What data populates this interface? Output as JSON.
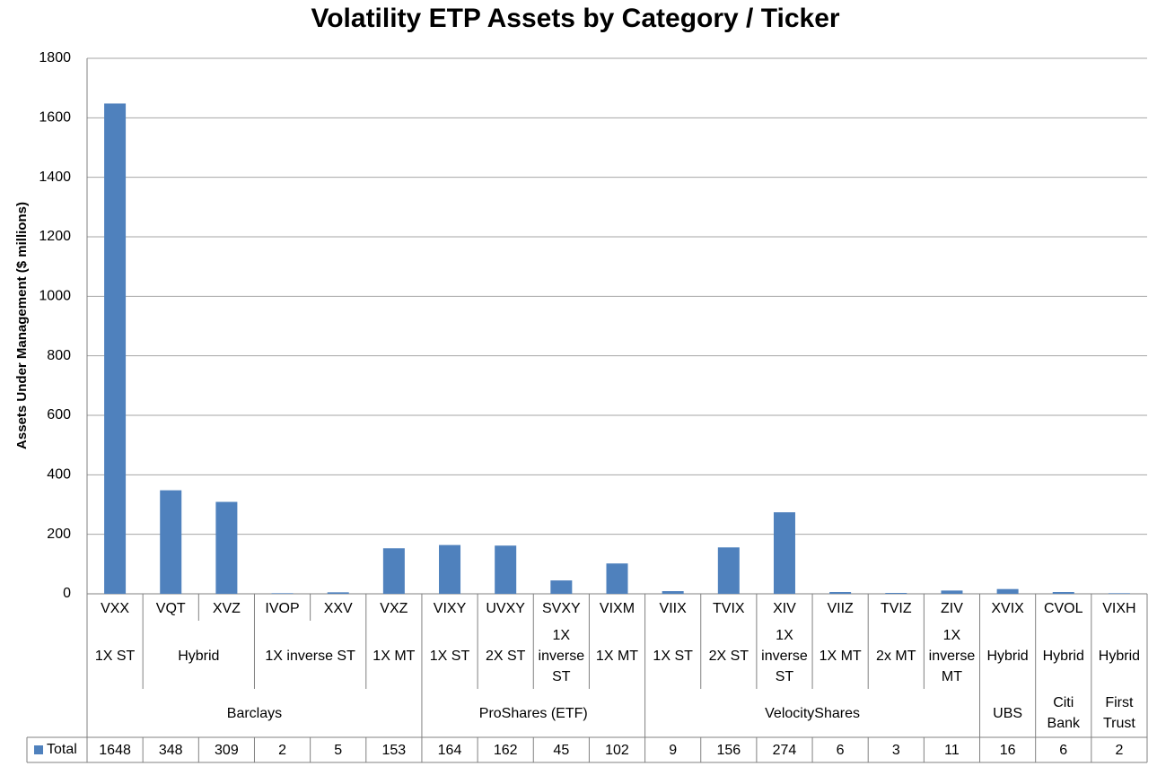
{
  "chart_data": {
    "type": "bar",
    "title": "Volatility ETP Assets by Category / Ticker",
    "y_label": "Assets Under Management ($ millions)",
    "categories": [
      "VXX",
      "VQT",
      "XVZ",
      "IVOP",
      "XXV",
      "VXZ",
      "VIXY",
      "UVXY",
      "SVXY",
      "VIXM",
      "VIIX",
      "TVIX",
      "XIV",
      "VIIZ",
      "TVIZ",
      "ZIV",
      "XVIX",
      "CVOL",
      "VIXH"
    ],
    "strategies": [
      "1X ST",
      "Hybrid",
      "Hybrid",
      "1X inverse ST",
      "1X inverse ST",
      "1X MT",
      "1X ST",
      "2X ST",
      "1X inverse ST",
      "1X MT",
      "1X ST",
      "2X ST",
      "1X inverse ST",
      "1X MT",
      "2x MT",
      "1X inverse MT",
      "Hybrid",
      "Hybrid",
      "Hybrid"
    ],
    "issuers": [
      "Barclays",
      "Barclays",
      "Barclays",
      "Barclays",
      "Barclays",
      "Barclays",
      "ProShares (ETF)",
      "ProShares (ETF)",
      "ProShares (ETF)",
      "ProShares (ETF)",
      "VelocityShares",
      "VelocityShares",
      "VelocityShares",
      "VelocityShares",
      "VelocityShares",
      "VelocityShares",
      "UBS",
      "Citi Bank",
      "First Trust"
    ],
    "series": [
      {
        "name": "Total",
        "color": "#4f81bd",
        "values": [
          1648,
          348,
          309,
          2,
          5,
          153,
          164,
          162,
          45,
          102,
          9,
          156,
          274,
          6,
          3,
          11,
          16,
          6,
          2
        ]
      }
    ],
    "ylim": [
      0,
      1800
    ],
    "yticks": [
      0,
      200,
      400,
      600,
      800,
      1000,
      1200,
      1400,
      1600,
      1800
    ],
    "grid": true
  }
}
